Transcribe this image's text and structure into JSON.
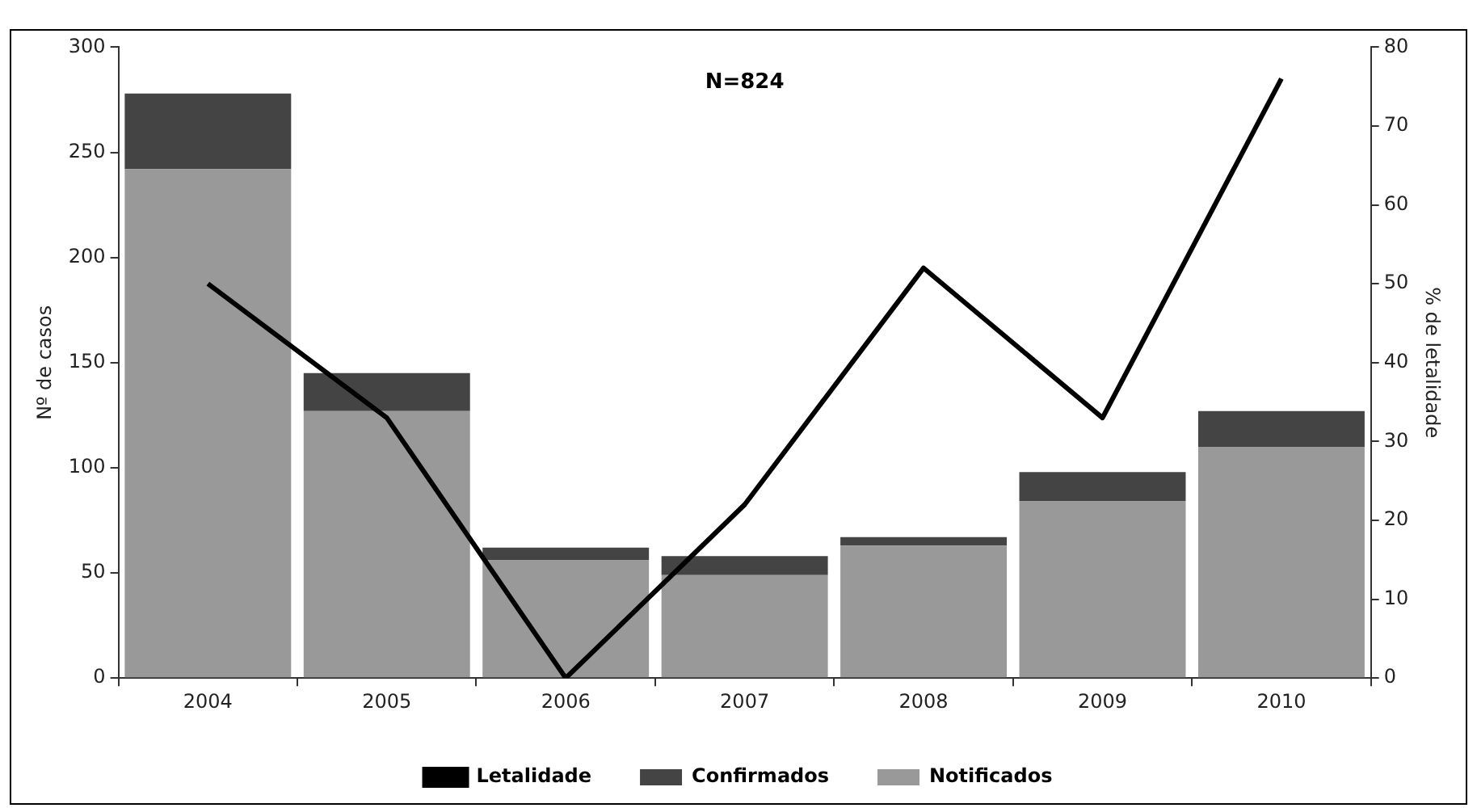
{
  "chart_data": {
    "type": "bar",
    "stacked": true,
    "categories": [
      "2004",
      "2005",
      "2006",
      "2007",
      "2008",
      "2009",
      "2010"
    ],
    "series": [
      {
        "name": "Notificados",
        "color": "#999999",
        "values": [
          242,
          127,
          56,
          49,
          63,
          84,
          110
        ]
      },
      {
        "name": "Confirmados",
        "color": "#444444",
        "values": [
          36,
          18,
          6,
          9,
          4,
          14,
          17
        ]
      },
      {
        "name": "Letalidade",
        "type": "line",
        "axis": "y2",
        "color": "#000000",
        "values": [
          50,
          33,
          0,
          22,
          52,
          33,
          76
        ]
      }
    ],
    "ylabel": "Nº de casos",
    "y2label": "% de letalidade",
    "ylim": [
      0,
      300
    ],
    "yticks": [
      0,
      50,
      100,
      150,
      200,
      250,
      300
    ],
    "y2lim": [
      0,
      80
    ],
    "y2ticks": [
      0,
      10,
      20,
      30,
      40,
      50,
      60,
      70,
      80
    ],
    "annotations": [
      "N=824"
    ],
    "grid": false,
    "legend": "bottom",
    "marker": "none",
    "line_style": "solid"
  }
}
